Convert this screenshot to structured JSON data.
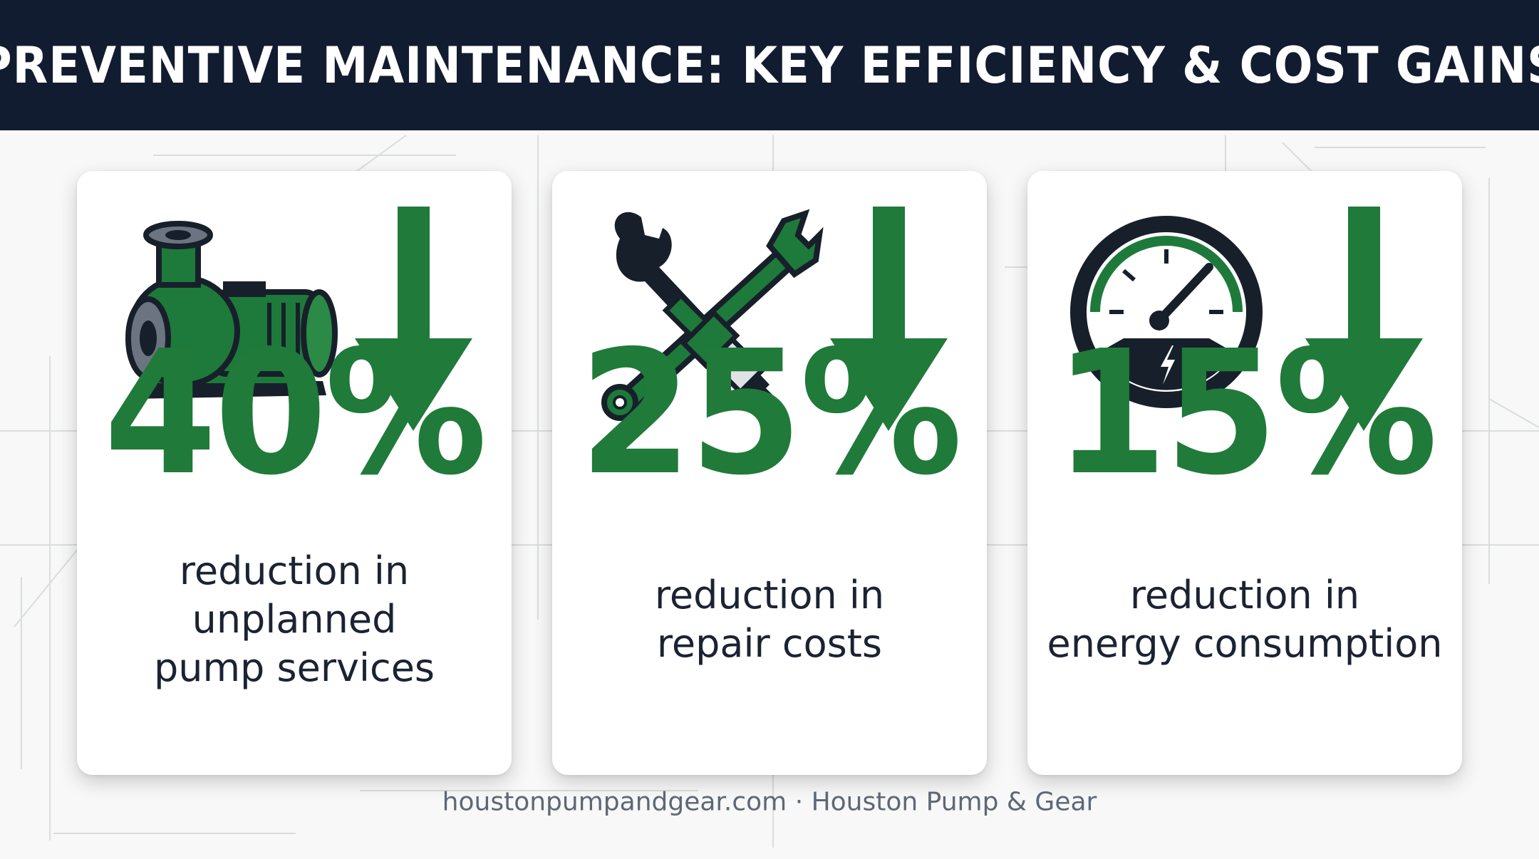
{
  "header": {
    "title": "PREVENTIVE MAINTENANCE: KEY EFFICIENCY & COST GAINS"
  },
  "colors": {
    "green": "#207a3a",
    "navy": "#121c30",
    "text": "#1b2333",
    "footer": "#5e6775"
  },
  "cards": [
    {
      "icon": "pump-icon",
      "indicator": "down-arrow-icon",
      "value": "40%",
      "description_line1": "reduction in unplanned",
      "description_line2": "pump services"
    },
    {
      "icon": "wrench-and-spark-plug-icon",
      "indicator": "down-arrow-icon",
      "value": "25%",
      "description_line1": "reduction in",
      "description_line2": "repair costs"
    },
    {
      "icon": "gauge-icon",
      "indicator": "down-arrow-icon",
      "value": "15%",
      "description_line1": "reduction in",
      "description_line2": "energy consumption"
    }
  ],
  "footer": {
    "text": "houstonpumpandgear.com · Houston Pump & Gear"
  }
}
